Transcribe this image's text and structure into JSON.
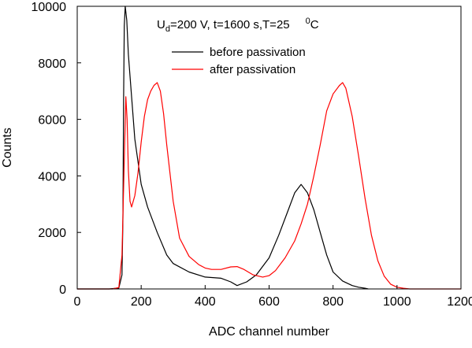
{
  "chart_data": {
    "type": "line",
    "title": "",
    "xlabel": "ADC channel number",
    "ylabel": "Counts",
    "xlim": [
      0,
      1200
    ],
    "ylim": [
      0,
      10000
    ],
    "xticks": [
      0,
      200,
      400,
      600,
      800,
      1000,
      1200
    ],
    "yticks": [
      0,
      2000,
      4000,
      6000,
      8000,
      10000
    ],
    "grid": false,
    "legend_position": "top-center",
    "annotation": {
      "u": "U",
      "u_sub": "d",
      "body": "=200 V, t=1600 s,T=25",
      "deg_sup": "0",
      "unit": "C"
    },
    "series": [
      {
        "name": "before passivation",
        "color": "#000000",
        "x": [
          0,
          100,
          130,
          140,
          143,
          145,
          147,
          150,
          155,
          160,
          170,
          180,
          200,
          220,
          250,
          280,
          300,
          350,
          400,
          450,
          480,
          500,
          530,
          560,
          600,
          630,
          660,
          680,
          700,
          720,
          740,
          760,
          780,
          800,
          830,
          860,
          880,
          900,
          910
        ],
        "y": [
          0,
          0,
          30,
          500,
          2500,
          6500,
          9300,
          10000,
          9500,
          8300,
          6800,
          5300,
          3700,
          2900,
          2000,
          1200,
          900,
          600,
          420,
          380,
          250,
          120,
          250,
          500,
          1100,
          1900,
          2800,
          3400,
          3700,
          3400,
          2800,
          2000,
          1200,
          600,
          280,
          120,
          60,
          25,
          0
        ]
      },
      {
        "name": "after passivation",
        "color": "#ff0000",
        "x": [
          0,
          110,
          130,
          140,
          148,
          152,
          156,
          160,
          165,
          170,
          180,
          190,
          200,
          210,
          220,
          230,
          240,
          250,
          260,
          270,
          280,
          300,
          320,
          350,
          380,
          400,
          420,
          450,
          480,
          500,
          520,
          550,
          580,
          600,
          620,
          650,
          680,
          700,
          720,
          740,
          760,
          780,
          800,
          820,
          830,
          840,
          860,
          880,
          900,
          920,
          940,
          960,
          980,
          1000,
          1020,
          1040,
          1200
        ],
        "y": [
          0,
          0,
          50,
          1200,
          5000,
          6800,
          6000,
          4200,
          3100,
          2900,
          3300,
          4100,
          5200,
          6100,
          6700,
          7000,
          7200,
          7300,
          7000,
          6200,
          5100,
          3100,
          1800,
          1150,
          860,
          740,
          690,
          690,
          780,
          790,
          700,
          500,
          420,
          470,
          650,
          1100,
          1700,
          2300,
          3000,
          4000,
          5100,
          6300,
          6900,
          7200,
          7300,
          7100,
          6100,
          4700,
          3200,
          1900,
          1000,
          450,
          170,
          60,
          25,
          0,
          0
        ]
      }
    ]
  }
}
